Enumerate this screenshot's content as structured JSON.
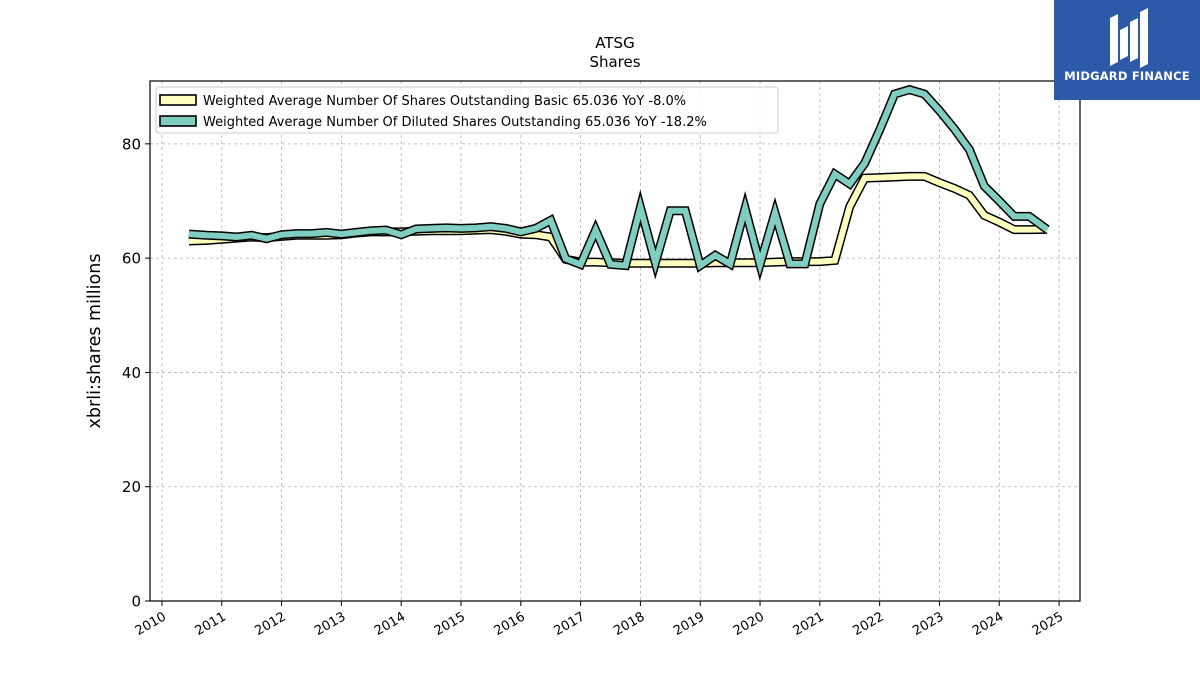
{
  "logo": {
    "text": "MIDGARD FINANCE",
    "bg_color": "#2c5aa8"
  },
  "chart_data": {
    "type": "line",
    "title": "ATSG",
    "subtitle": "Shares",
    "ylabel": "xbrli:shares millions",
    "xlabel": "",
    "xlim": [
      2009.8,
      2025.35
    ],
    "ylim": [
      0,
      91
    ],
    "x_ticks": [
      "2010",
      "2011",
      "2012",
      "2013",
      "2014",
      "2015",
      "2016",
      "2017",
      "2018",
      "2019",
      "2020",
      "2021",
      "2022",
      "2023",
      "2024",
      "2025"
    ],
    "y_ticks": [
      0,
      20,
      40,
      60,
      80
    ],
    "grid": true,
    "legend_position": "top-left",
    "series": [
      {
        "name": "Weighted Average Number Of Shares Outstanding Basic  65.036 YoY -8.0%",
        "color": "#ffffbf",
        "x": [
          2010.45,
          2010.75,
          2011.0,
          2011.25,
          2011.5,
          2011.75,
          2012.0,
          2012.25,
          2012.5,
          2012.75,
          2013.0,
          2013.25,
          2013.5,
          2013.75,
          2014.0,
          2014.25,
          2014.5,
          2014.75,
          2015.0,
          2015.25,
          2015.5,
          2015.75,
          2016.0,
          2016.25,
          2016.5,
          2016.75,
          2017.0,
          2017.25,
          2017.5,
          2017.75,
          2018.0,
          2018.25,
          2018.5,
          2018.75,
          2019.0,
          2019.25,
          2019.5,
          2019.75,
          2020.0,
          2020.25,
          2020.5,
          2020.75,
          2021.0,
          2021.25,
          2021.5,
          2021.75,
          2022.0,
          2022.25,
          2022.5,
          2022.75,
          2023.0,
          2023.25,
          2023.5,
          2023.75,
          2024.0,
          2024.25,
          2024.5,
          2024.8
        ],
        "values": [
          63.0,
          63.1,
          63.3,
          63.5,
          63.7,
          63.6,
          63.8,
          64.0,
          64.0,
          64.0,
          64.1,
          64.4,
          64.6,
          64.6,
          64.6,
          64.7,
          64.8,
          64.8,
          64.8,
          64.9,
          65.0,
          64.7,
          64.2,
          64.1,
          63.7,
          59.8,
          59.3,
          59.3,
          59.2,
          59.1,
          59.1,
          59.1,
          59.1,
          59.1,
          59.1,
          59.2,
          59.2,
          59.2,
          59.2,
          59.3,
          59.4,
          59.4,
          59.4,
          59.6,
          69.0,
          74.0,
          74.1,
          74.2,
          74.3,
          74.3,
          73.2,
          72.2,
          71.0,
          67.5,
          66.3,
          65.0,
          65.0,
          65.036
        ]
      },
      {
        "name": "Weighted Average Number Of Diluted Shares Outstanding  65.036 YoY -18.2%",
        "color": "#80cdc1",
        "x": [
          2010.45,
          2010.75,
          2011.0,
          2011.25,
          2011.5,
          2011.75,
          2012.0,
          2012.25,
          2012.5,
          2012.75,
          2013.0,
          2013.25,
          2013.5,
          2013.75,
          2014.0,
          2014.25,
          2014.5,
          2014.75,
          2015.0,
          2015.25,
          2015.5,
          2015.75,
          2016.0,
          2016.25,
          2016.5,
          2016.75,
          2017.0,
          2017.25,
          2017.5,
          2017.75,
          2018.0,
          2018.25,
          2018.5,
          2018.75,
          2019.0,
          2019.25,
          2019.5,
          2019.75,
          2020.0,
          2020.25,
          2020.5,
          2020.75,
          2021.0,
          2021.25,
          2021.5,
          2021.75,
          2022.0,
          2022.25,
          2022.5,
          2022.75,
          2023.0,
          2023.25,
          2023.5,
          2023.75,
          2024.0,
          2024.25,
          2024.5,
          2024.8
        ],
        "values": [
          64.2,
          64.0,
          63.9,
          63.7,
          64.0,
          63.4,
          64.1,
          64.3,
          64.3,
          64.5,
          64.2,
          64.5,
          64.8,
          64.9,
          64.1,
          65.1,
          65.2,
          65.3,
          65.2,
          65.3,
          65.5,
          65.2,
          64.6,
          65.2,
          66.6,
          59.9,
          58.9,
          64.9,
          58.9,
          58.7,
          68.9,
          59.2,
          68.3,
          68.3,
          58.7,
          60.5,
          59.0,
          68.7,
          58.9,
          67.9,
          59.0,
          59.0,
          69.5,
          74.7,
          73.0,
          76.6,
          82.4,
          88.7,
          89.5,
          88.7,
          85.8,
          82.6,
          79.0,
          72.6,
          70.0,
          67.3,
          67.3,
          65.036
        ]
      }
    ]
  }
}
